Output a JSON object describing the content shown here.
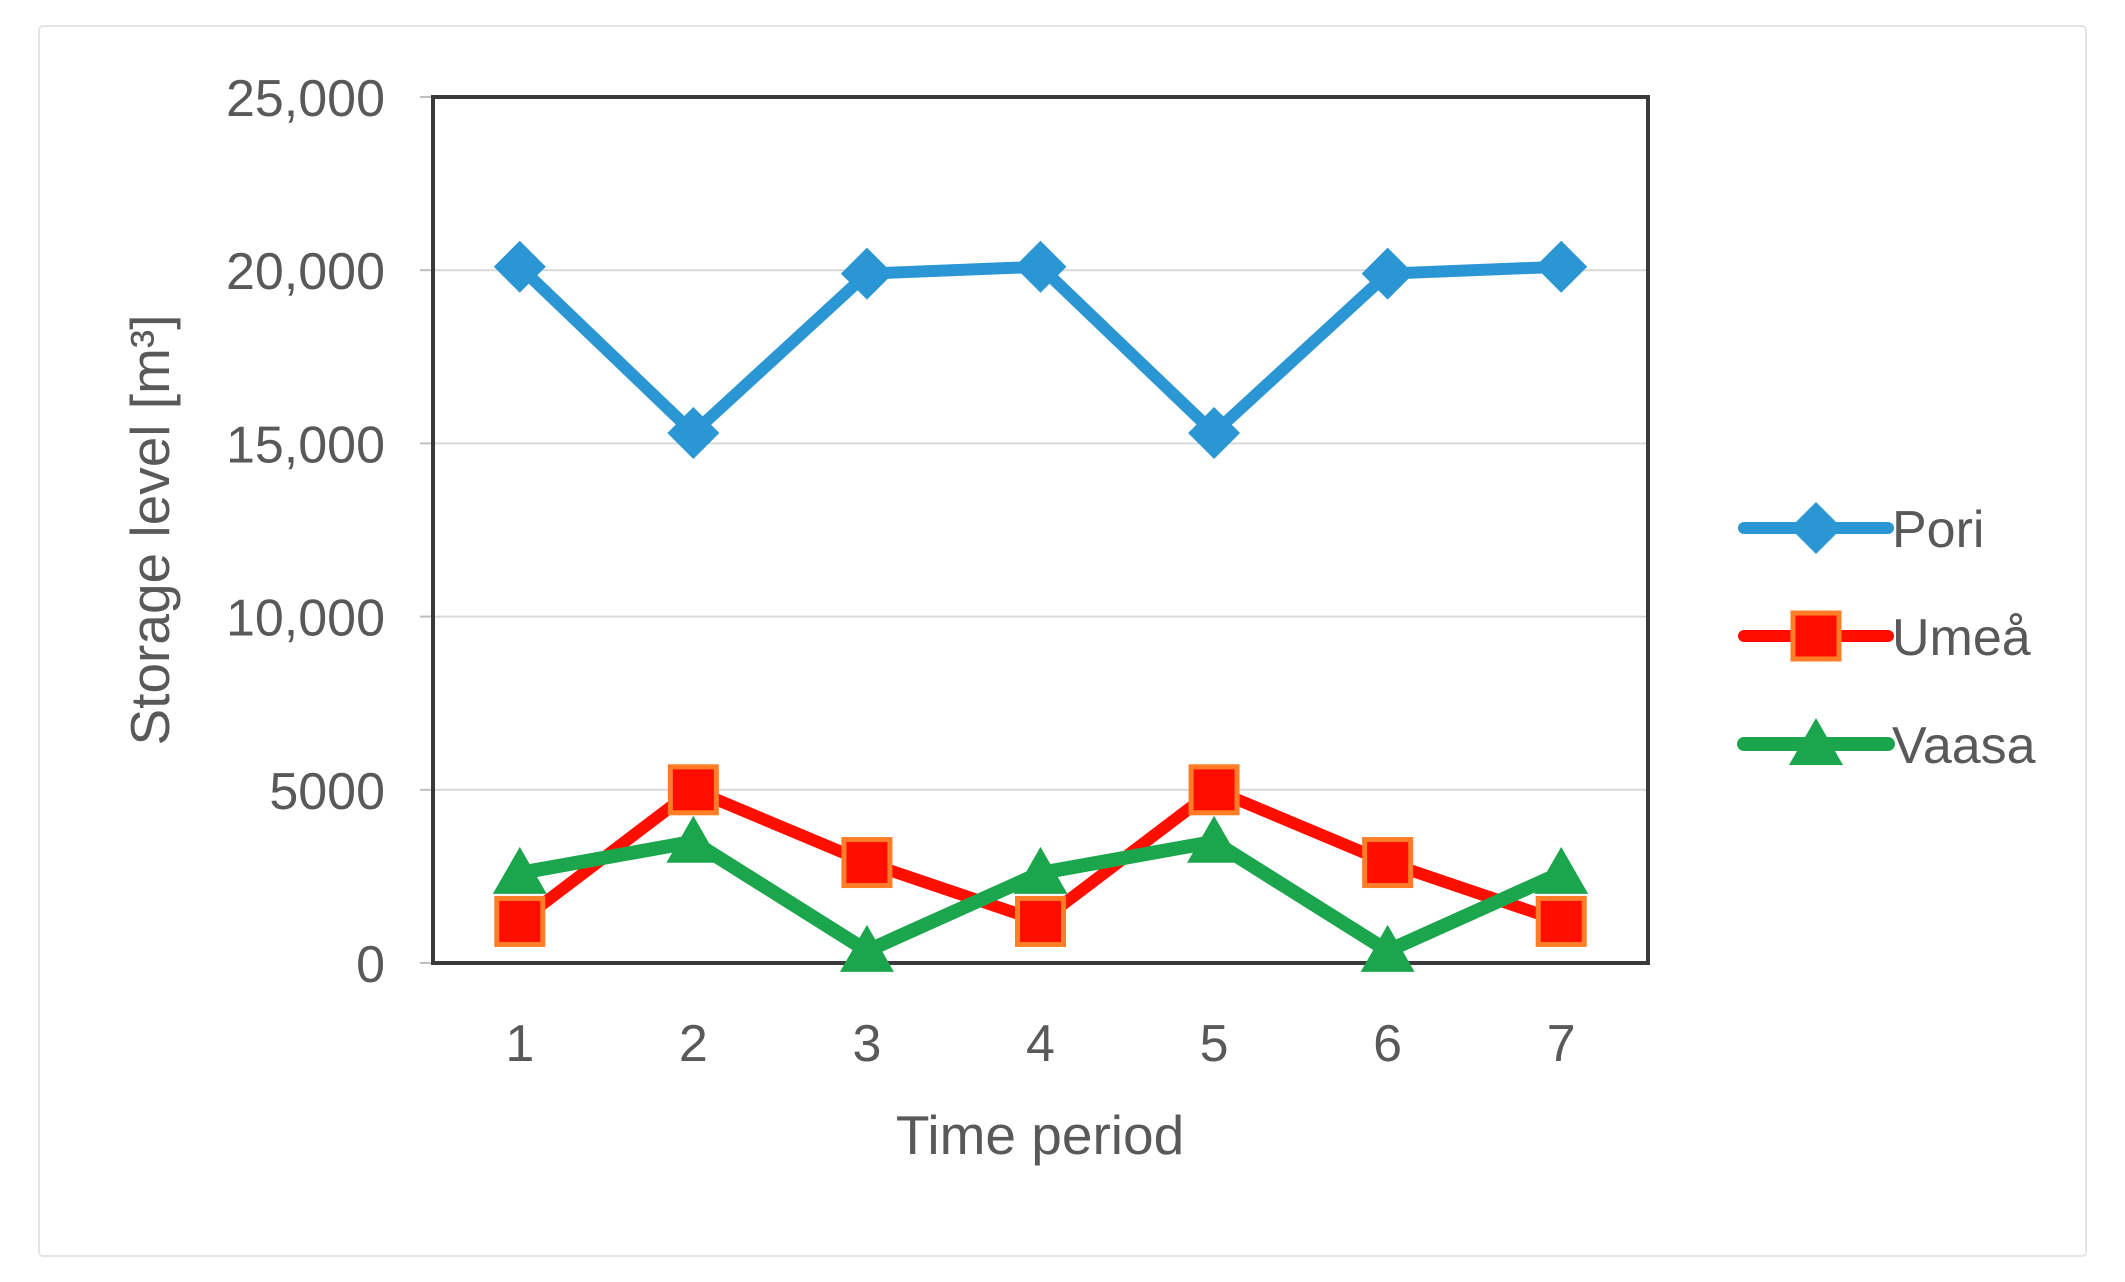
{
  "figure": {
    "background": "#FFFFFF",
    "frame_border_color": "#E4E4E4"
  },
  "colors": {
    "axis_text": "#595959",
    "gridline": "#D9D9D9",
    "plot_border": "#3A3A3A",
    "tick_mark": "#BFBFBF"
  },
  "chart_data": {
    "type": "line",
    "title": "",
    "xlabel": "Time period",
    "ylabel": "Storage level [m³]",
    "x": [
      "1",
      "2",
      "3",
      "4",
      "5",
      "6",
      "7"
    ],
    "ylim": [
      0,
      25000
    ],
    "ytick_interval": 5000,
    "ytick_labels": [
      "0",
      "5000",
      "10,000",
      "15,000",
      "20,000",
      "25,000"
    ],
    "grid": true,
    "legend_position": "right",
    "series": [
      {
        "name": "Pori",
        "color": "#2B96D4",
        "marker": "diamond",
        "line_width": 12,
        "values": [
          20100,
          15300,
          19900,
          20100,
          15300,
          19900,
          20100
        ]
      },
      {
        "name": "Umeå",
        "color": "#FF0E00",
        "marker": "square",
        "marker_border": "#FF7D26",
        "line_width": 12,
        "values": [
          1200,
          5000,
          2900,
          1200,
          5000,
          2900,
          1200
        ]
      },
      {
        "name": "Vaasa",
        "color": "#1BA64D",
        "marker": "triangle",
        "line_width": 14,
        "values": [
          2600,
          3500,
          350,
          2600,
          3500,
          350,
          2600
        ]
      }
    ]
  }
}
